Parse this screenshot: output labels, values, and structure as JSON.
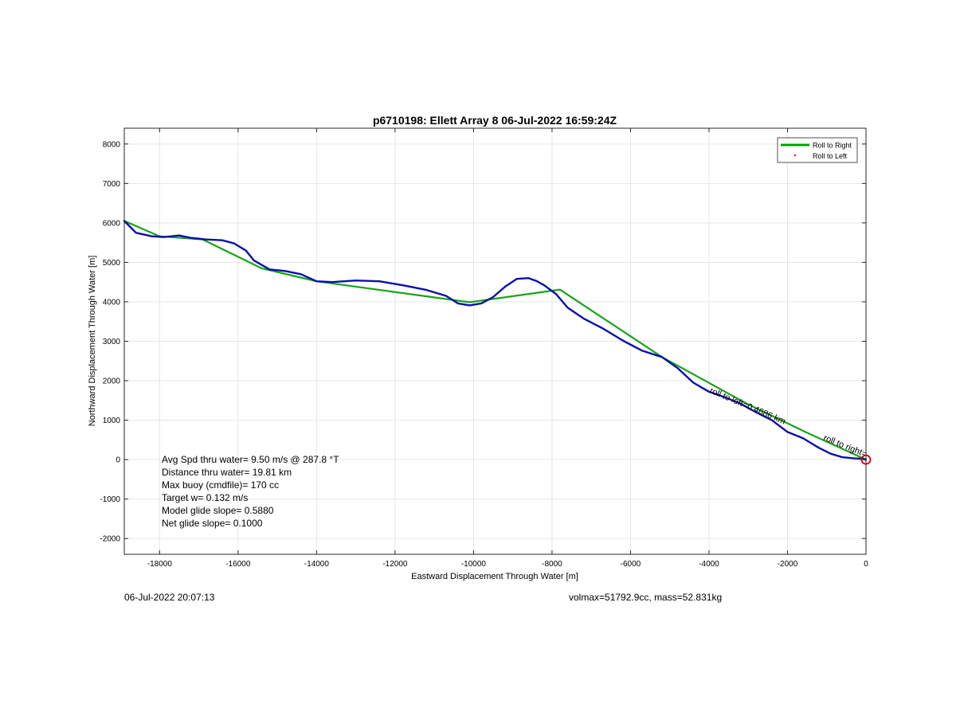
{
  "chart_data": {
    "type": "line",
    "title": "p6710198: Ellett Array 8 06-Jul-2022 16:59:24Z",
    "xlabel": "Eastward Displacement Through Water [m]",
    "ylabel": "Northward Displacement Through Water [m]",
    "xlim": [
      -18900,
      0
    ],
    "ylim": [
      -2400,
      8400
    ],
    "xticks": [
      -18000,
      -16000,
      -14000,
      -12000,
      -10000,
      -8000,
      -6000,
      -4000,
      -2000,
      0
    ],
    "yticks": [
      -2000,
      -1000,
      0,
      1000,
      2000,
      3000,
      4000,
      5000,
      6000,
      7000,
      8000
    ],
    "grid": true,
    "legend_position": "top-right",
    "legend": [
      {
        "label": "Roll to Right",
        "color": "#00a000",
        "marker": "line"
      },
      {
        "label": "Roll to Left",
        "color": "#e00000",
        "marker": "dot"
      }
    ],
    "series": [
      {
        "name": "Roll to Right",
        "color": "#1aa31a",
        "x": [
          -18900,
          -18000,
          -16900,
          -15400,
          -14000,
          -10100,
          -7800,
          -5200,
          -3000,
          -1500,
          0
        ],
        "y": [
          6050,
          5660,
          5580,
          4850,
          4520,
          3990,
          4310,
          2600,
          1400,
          680,
          0
        ]
      },
      {
        "name": "Track",
        "color": "#0a10a8",
        "x": [
          -18900,
          -18800,
          -18600,
          -18200,
          -17900,
          -17500,
          -17200,
          -16800,
          -16400,
          -16100,
          -15800,
          -15600,
          -15200,
          -14800,
          -14400,
          -14000,
          -13600,
          -13000,
          -12400,
          -11800,
          -11200,
          -10700,
          -10400,
          -10100,
          -9800,
          -9500,
          -9200,
          -8900,
          -8600,
          -8400,
          -8200,
          -7900,
          -7600,
          -7200,
          -6700,
          -6200,
          -5700,
          -5200,
          -4800,
          -4400,
          -4000,
          -3600,
          -3200,
          -2800,
          -2400,
          -2000,
          -1600,
          -1200,
          -900,
          -600,
          -300,
          -100,
          0
        ],
        "y": [
          6050,
          5950,
          5750,
          5660,
          5640,
          5680,
          5620,
          5580,
          5560,
          5480,
          5300,
          5050,
          4820,
          4780,
          4700,
          4520,
          4500,
          4540,
          4520,
          4420,
          4300,
          4150,
          3960,
          3910,
          3960,
          4120,
          4380,
          4580,
          4600,
          4530,
          4420,
          4200,
          3850,
          3580,
          3320,
          3020,
          2760,
          2600,
          2320,
          1950,
          1720,
          1580,
          1420,
          1200,
          1000,
          700,
          540,
          300,
          150,
          60,
          30,
          20,
          0
        ]
      }
    ],
    "annotations": [
      {
        "text": "roll to left=0.4686 km",
        "color": "#000000"
      },
      {
        "text": "roll to right=",
        "color": "#000000"
      }
    ],
    "end_marker": {
      "x": 0,
      "y": 0,
      "color": "#cc0000"
    }
  },
  "info_box": {
    "line1": "Avg Spd thru water=  9.50 m/s @ 287.8 °T",
    "line2": "Distance thru water= 19.81 km",
    "line3": "Max buoy (cmdfile)= 170 cc",
    "line4": "Target w= 0.132 m/s",
    "line5": "Model glide slope= 0.5880",
    "line6": "Net glide slope= 0.1000"
  },
  "footer": {
    "timestamp": "06-Jul-2022 20:07:13",
    "mass_info": "volmax=51792.9cc, mass=52.831kg"
  }
}
